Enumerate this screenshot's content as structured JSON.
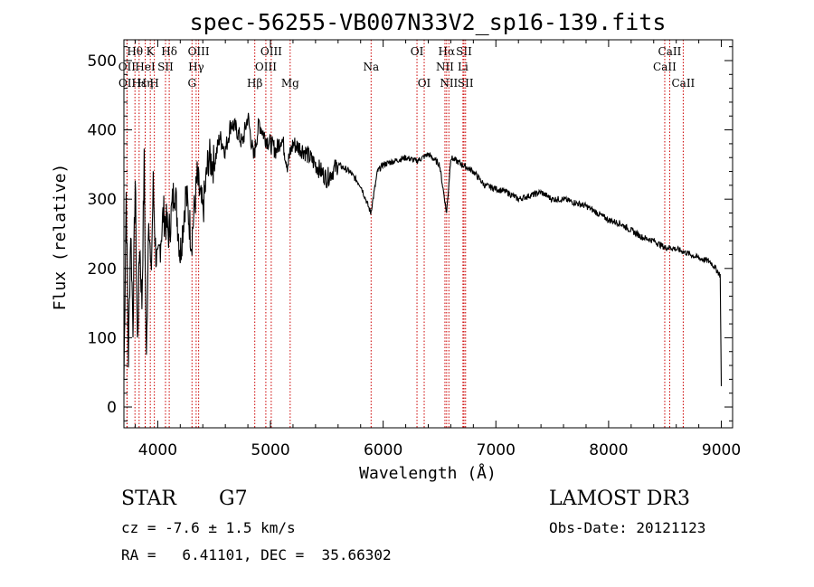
{
  "chart_data": {
    "type": "line",
    "title": "spec-56255-VB007N33V2_sp16-139.fits",
    "xlabel": "Wavelength (Å)",
    "ylabel": "Flux (relative)",
    "xlim": [
      3700,
      9100
    ],
    "ylim": [
      -30,
      530
    ],
    "x_ticks": [
      4000,
      5000,
      6000,
      7000,
      8000,
      9000
    ],
    "y_ticks": [
      0,
      100,
      200,
      300,
      400,
      500
    ],
    "x_tick_labels": [
      "4000",
      "5000",
      "6000",
      "7000",
      "8000",
      "9000"
    ],
    "y_tick_labels": [
      "0",
      "100",
      "200",
      "300",
      "400",
      "500"
    ],
    "grid": false,
    "series": [
      {
        "name": "spectrum",
        "color": "#000000",
        "x": [
          3700,
          3720,
          3740,
          3760,
          3780,
          3800,
          3820,
          3840,
          3860,
          3880,
          3900,
          3920,
          3940,
          3960,
          3980,
          4000,
          4050,
          4100,
          4150,
          4200,
          4250,
          4300,
          4350,
          4400,
          4450,
          4500,
          4550,
          4600,
          4650,
          4700,
          4750,
          4800,
          4850,
          4900,
          4950,
          5000,
          5050,
          5100,
          5150,
          5200,
          5300,
          5400,
          5500,
          5600,
          5700,
          5800,
          5890,
          5950,
          6000,
          6100,
          6200,
          6300,
          6400,
          6500,
          6563,
          6600,
          6700,
          6800,
          6900,
          7000,
          7100,
          7200,
          7300,
          7400,
          7500,
          7600,
          7700,
          7800,
          7900,
          8000,
          8100,
          8200,
          8300,
          8400,
          8500,
          8550,
          8600,
          8700,
          8800,
          8900,
          8950,
          8990,
          9000
        ],
        "y": [
          40,
          310,
          70,
          260,
          120,
          330,
          90,
          240,
          150,
          350,
          60,
          290,
          180,
          320,
          230,
          200,
          280,
          250,
          320,
          220,
          310,
          240,
          330,
          280,
          360,
          350,
          390,
          370,
          410,
          400,
          380,
          420,
          360,
          410,
          390,
          380,
          370,
          390,
          350,
          380,
          370,
          350,
          330,
          350,
          340,
          320,
          280,
          340,
          350,
          355,
          360,
          355,
          365,
          350,
          280,
          360,
          350,
          340,
          320,
          315,
          310,
          300,
          305,
          310,
          300,
          300,
          295,
          290,
          280,
          270,
          265,
          255,
          245,
          240,
          230,
          230,
          228,
          222,
          215,
          210,
          200,
          190,
          30
        ]
      }
    ],
    "lines": [
      {
        "label": "Hθ",
        "x": 3798,
        "row": 1
      },
      {
        "label": "OII",
        "x": 3727,
        "row": 2
      },
      {
        "label": "OII",
        "x": 3729,
        "row": 3
      },
      {
        "label": "Hε",
        "x": 3835,
        "row": 3
      },
      {
        "label": "K",
        "x": 3934,
        "row": 1
      },
      {
        "label": "HeI",
        "x": 3889,
        "row": 2
      },
      {
        "label": "H",
        "x": 3970,
        "row": 3
      },
      {
        "label": "Hη",
        "x": 3889,
        "row": 3
      },
      {
        "label": "Hδ",
        "x": 4102,
        "row": 1
      },
      {
        "label": "SII",
        "x": 4069,
        "row": 2
      },
      {
        "label": "OIII",
        "x": 4363,
        "row": 1
      },
      {
        "label": "Hγ",
        "x": 4341,
        "row": 2
      },
      {
        "label": "G",
        "x": 4304,
        "row": 3
      },
      {
        "label": "Hβ",
        "x": 4861,
        "row": 3
      },
      {
        "label": "OIII",
        "x": 5007,
        "row": 1
      },
      {
        "label": "OIII",
        "x": 4959,
        "row": 2
      },
      {
        "label": "Mg",
        "x": 5175,
        "row": 3
      },
      {
        "label": "Na",
        "x": 5893,
        "row": 2
      },
      {
        "label": "OI",
        "x": 6300,
        "row": 1
      },
      {
        "label": "OI",
        "x": 6364,
        "row": 3
      },
      {
        "label": "Hα",
        "x": 6563,
        "row": 1
      },
      {
        "label": "NII",
        "x": 6548,
        "row": 2
      },
      {
        "label": "NII",
        "x": 6583,
        "row": 3
      },
      {
        "label": "SII",
        "x": 6717,
        "row": 1
      },
      {
        "label": "Li",
        "x": 6708,
        "row": 2
      },
      {
        "label": "SII",
        "x": 6731,
        "row": 3
      },
      {
        "label": "CaII",
        "x": 8542,
        "row": 1
      },
      {
        "label": "CaII",
        "x": 8498,
        "row": 2
      },
      {
        "label": "CaII",
        "x": 8662,
        "row": 3
      }
    ]
  },
  "info": {
    "class_label": "STAR",
    "subclass": "G7",
    "survey": "LAMOST DR3",
    "redshift": "cz = -7.6 ± 1.5 km/s",
    "obs_date": "Obs-Date: 20121123",
    "coords": "RA =   6.41101, DEC =  35.66302"
  },
  "colors": {
    "spectrum": "#000000",
    "line_marker": "#cc0000",
    "axis": "#000000"
  }
}
